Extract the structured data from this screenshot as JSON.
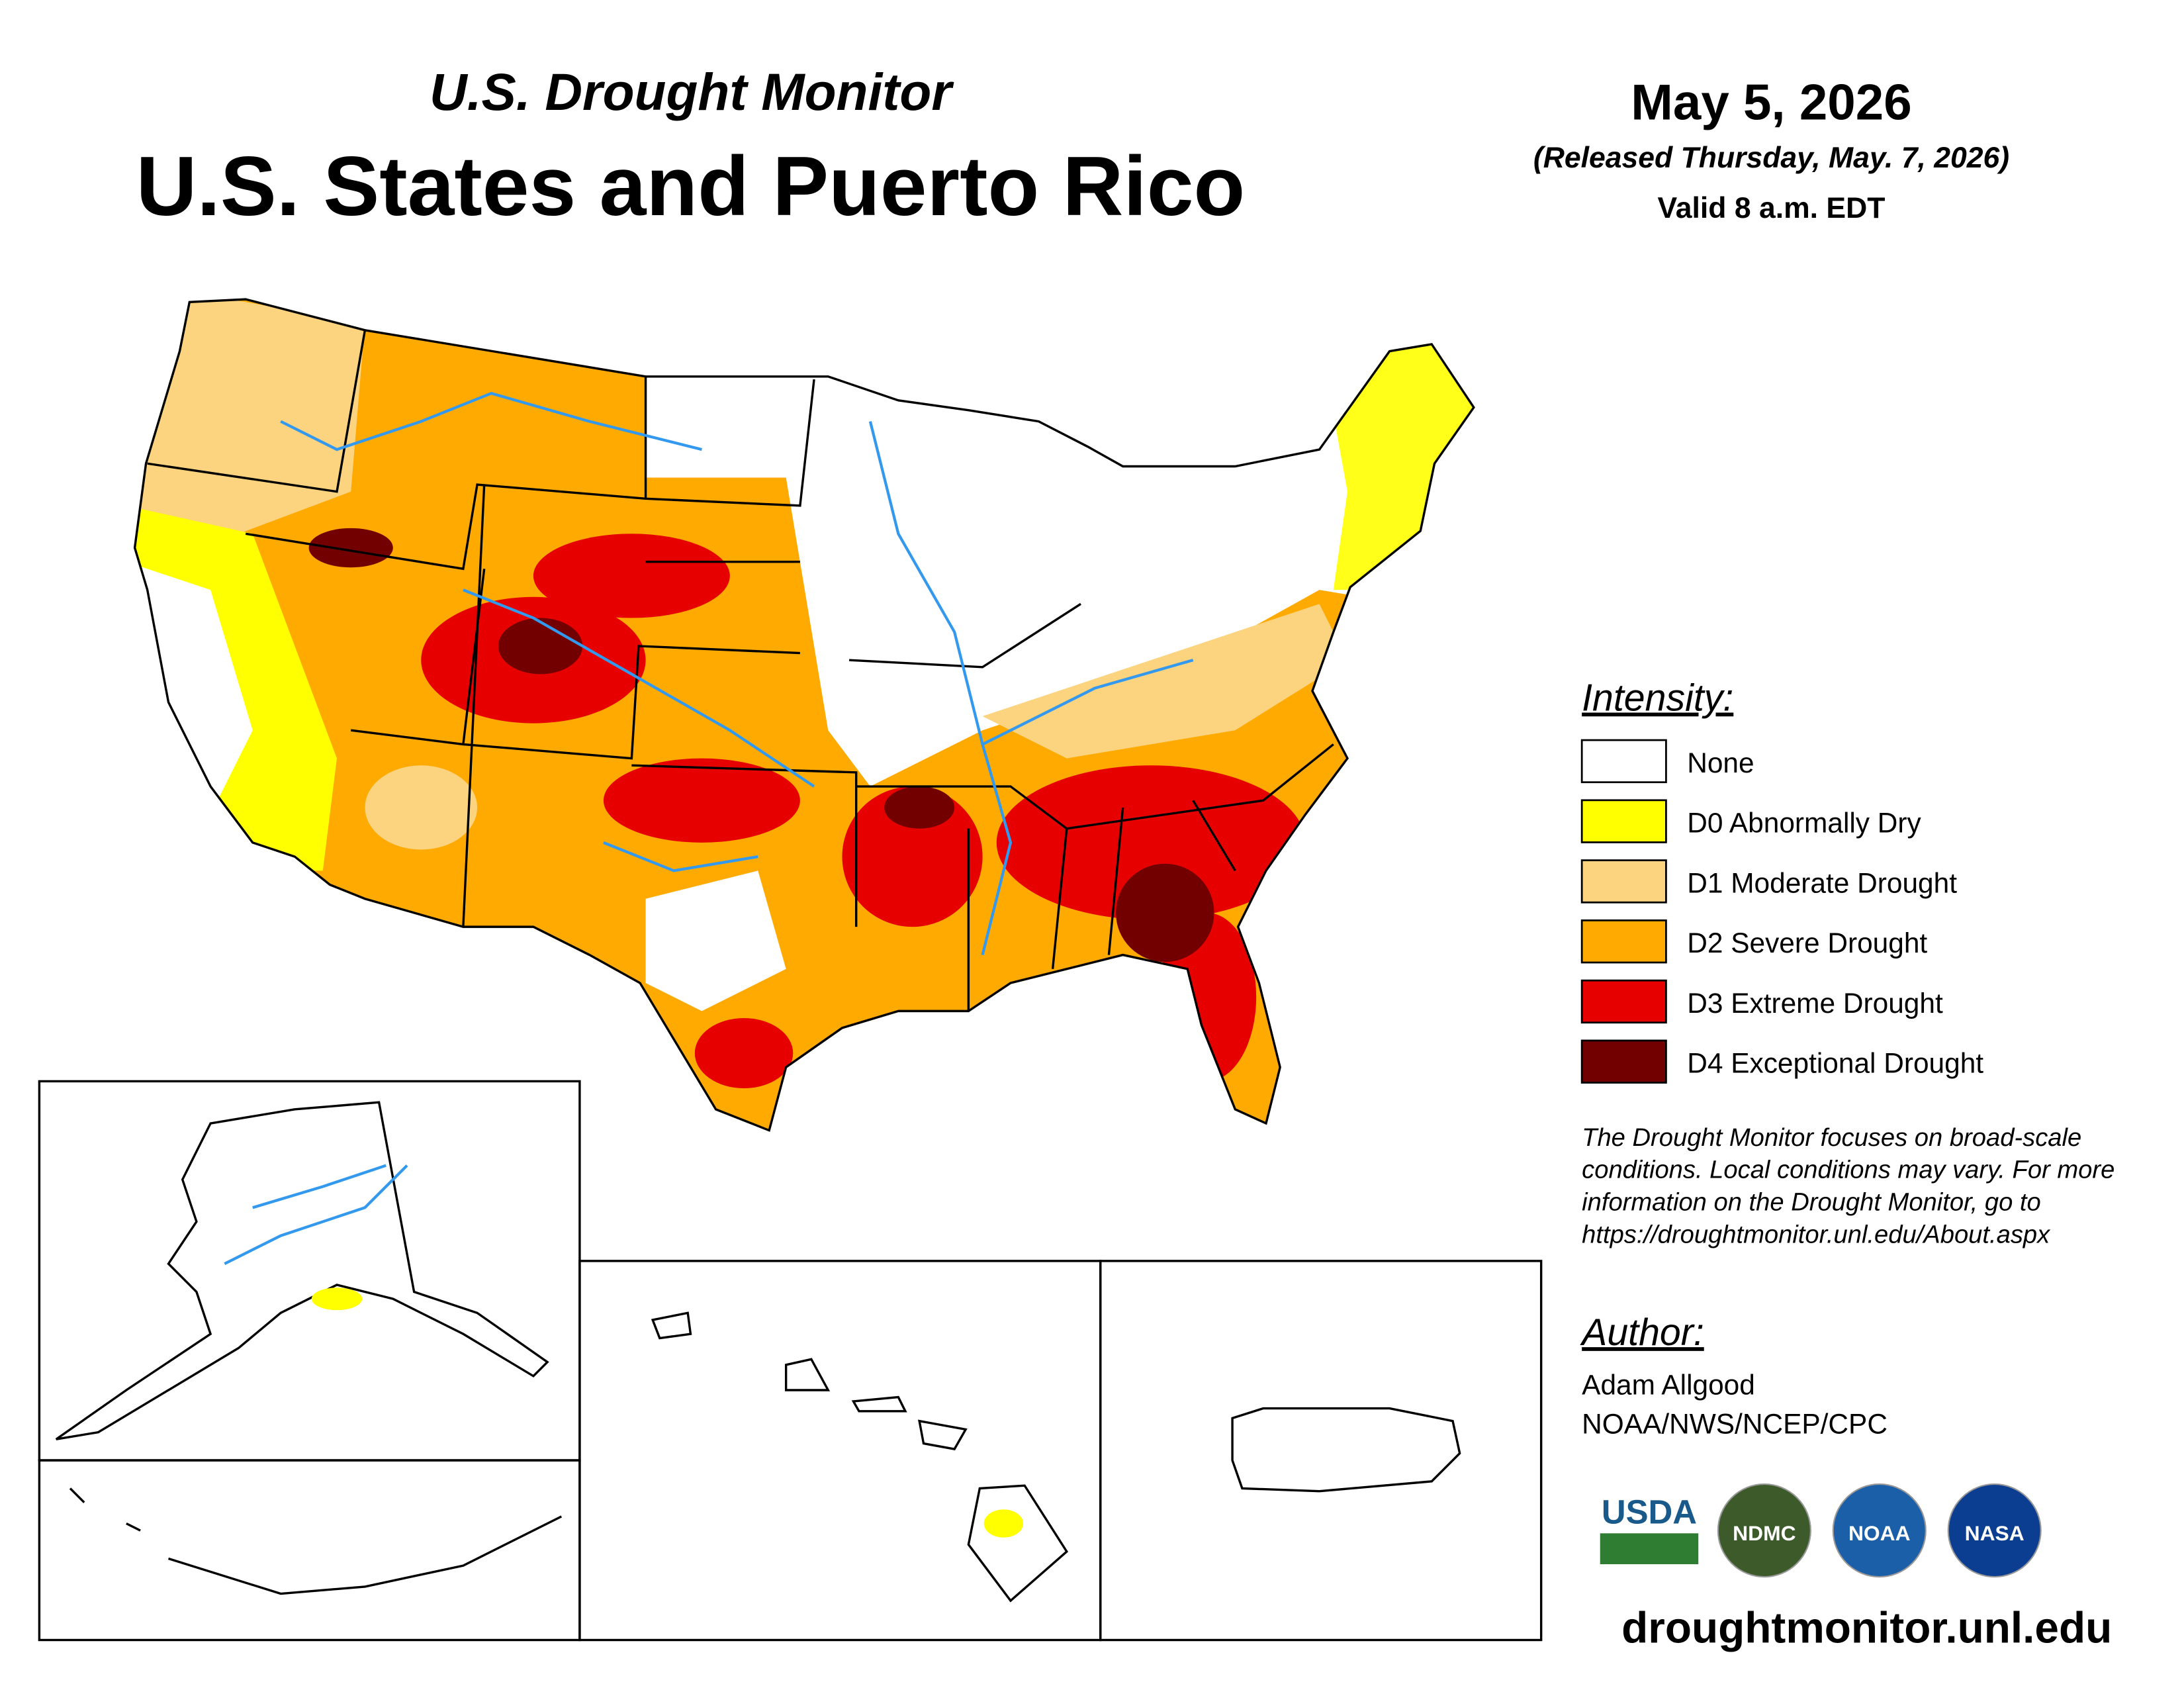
{
  "header": {
    "subtitle": "U.S. Drought Monitor",
    "title": "U.S. States and Puerto Rico",
    "date": "May 5, 2026",
    "released": "(Released Thursday, May. 7, 2026)",
    "valid": "Valid 8 a.m. EDT"
  },
  "legend": {
    "title": "Intensity:",
    "items": [
      {
        "label": "None",
        "color": "#ffffff"
      },
      {
        "label": "D0 Abnormally Dry",
        "color": "#ffff00"
      },
      {
        "label": "D1 Moderate Drought",
        "color": "#fcd37f"
      },
      {
        "label": "D2 Severe Drought",
        "color": "#ffaa00"
      },
      {
        "label": "D3 Extreme Drought",
        "color": "#e60000"
      },
      {
        "label": "D4 Exceptional Drought",
        "color": "#730000"
      }
    ]
  },
  "note": [
    "The Drought Monitor focuses on broad-scale",
    "conditions. Local conditions may vary. For more",
    "information on the Drought Monitor, go to",
    "https://droughtmonitor.unl.edu/About.aspx"
  ],
  "author": {
    "title": "Author:",
    "lines": [
      "Adam Allgood",
      "NOAA/NWS/NCEP/CPC"
    ]
  },
  "logos": [
    "USDA",
    "NDMC",
    "NOAA",
    "NASA"
  ],
  "url": "droughtmonitor.unl.edu"
}
